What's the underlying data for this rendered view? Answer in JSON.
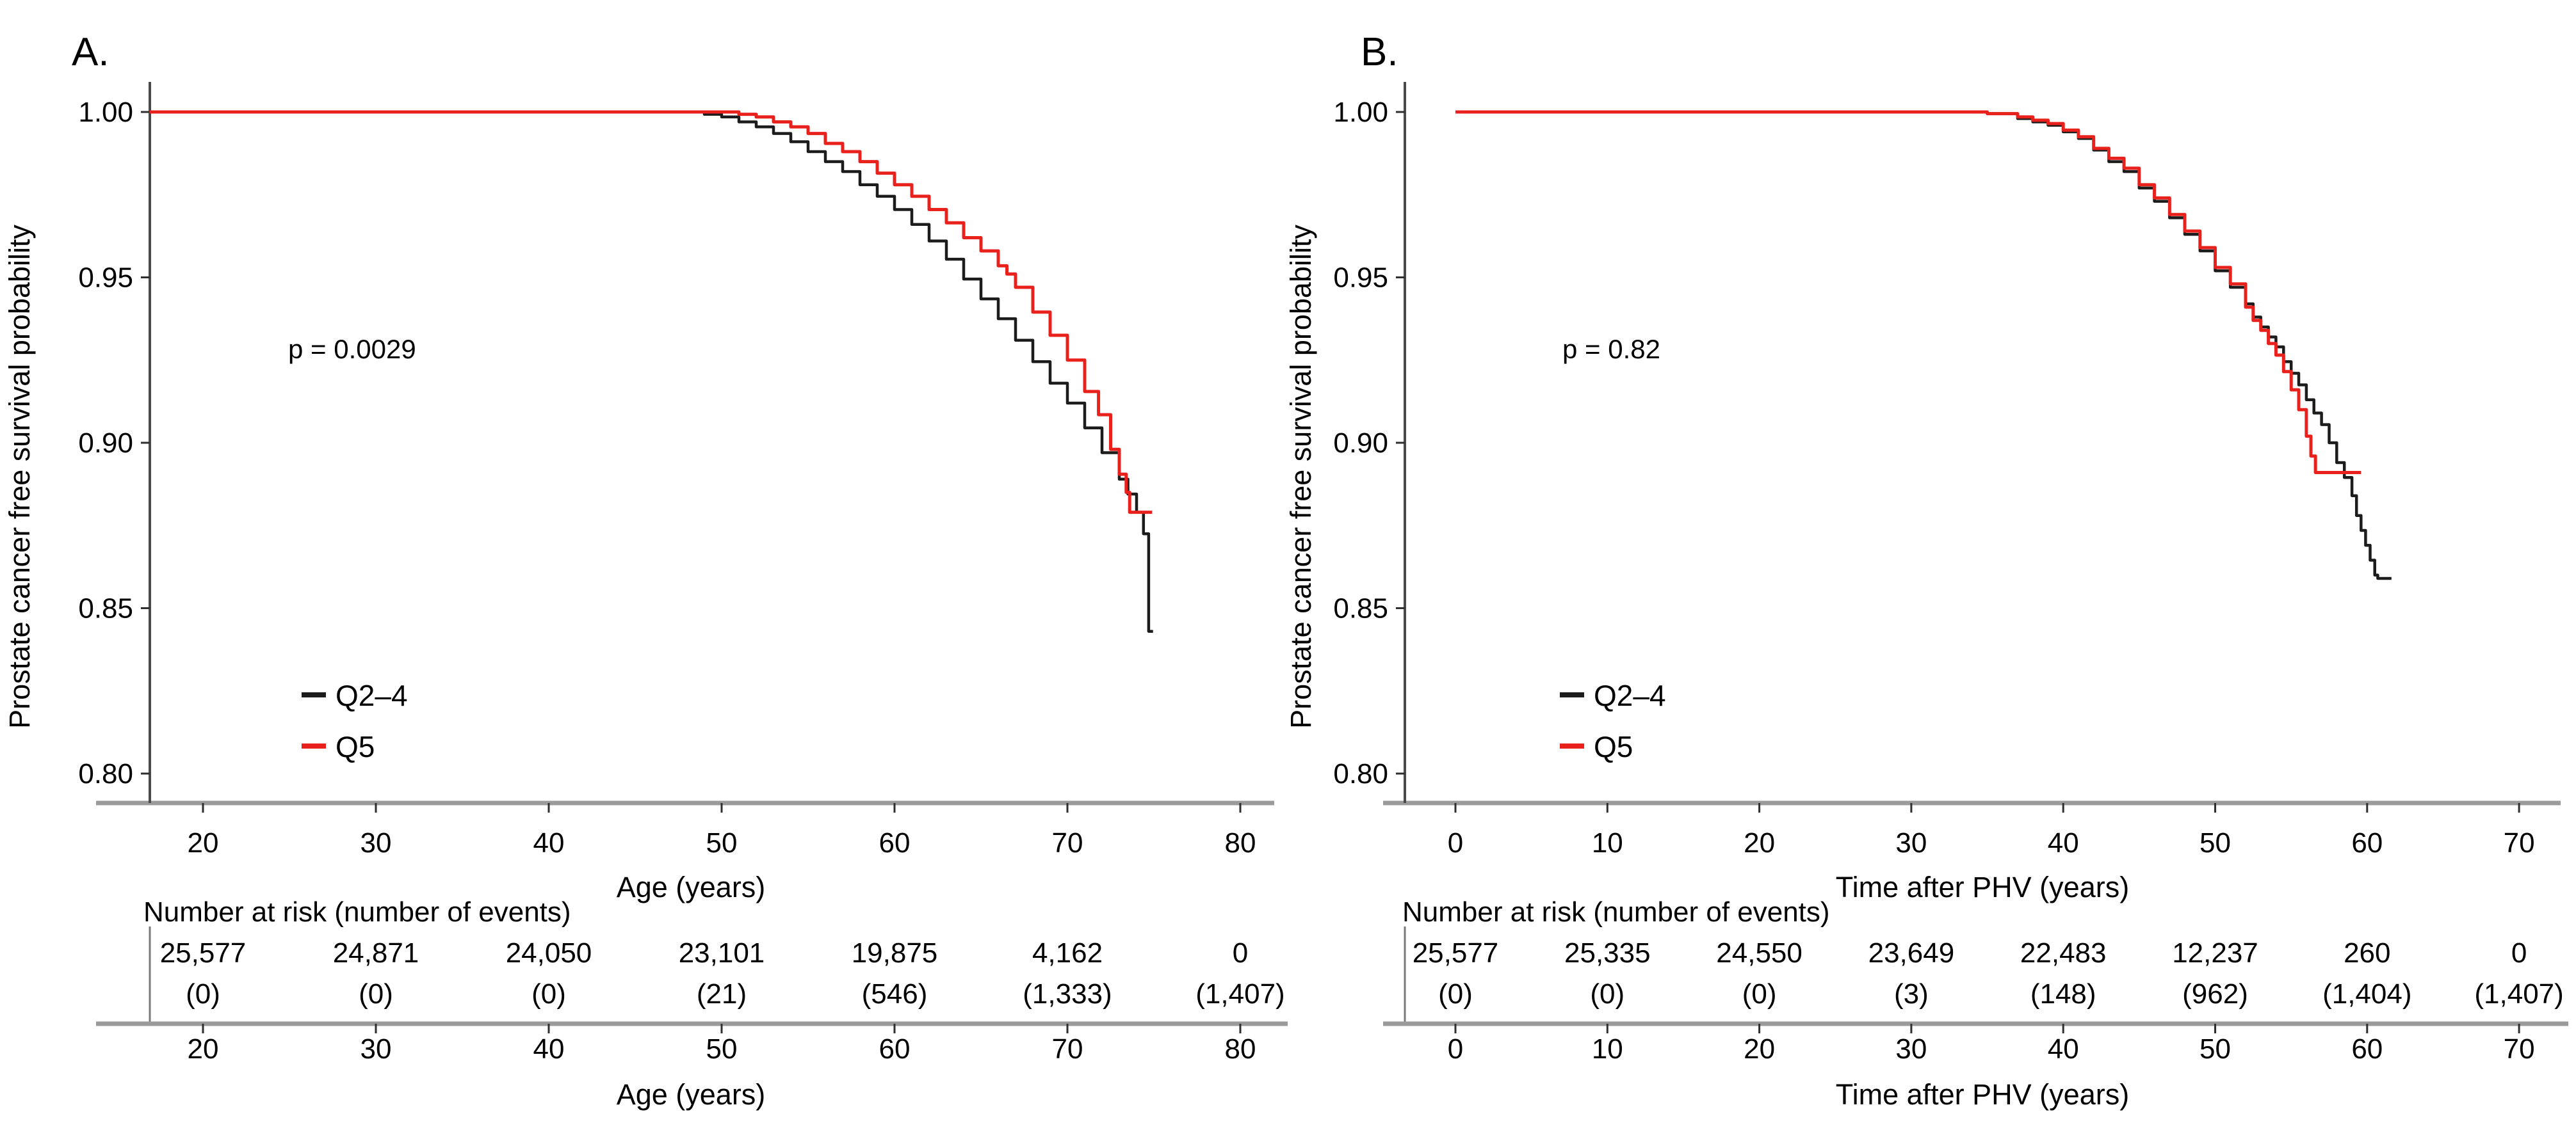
{
  "figure_caption": "",
  "shared": {
    "y_axis_label": "Prostate cancer free survival probability",
    "risk_header": "Number at risk (number of events)",
    "series_colors": {
      "q2_4": "#1c1c1c",
      "q5": "#e8211d"
    }
  },
  "chart_data": [
    {
      "type": "line",
      "subtype": "kaplan-meier-step",
      "panel": "A.",
      "p_value": "p = 0.0029",
      "xlabel": "Age (years)",
      "ylabel": "Prostate cancer free survival probability",
      "risk_header": "Number at risk (number of events)",
      "xlim": [
        17,
        82
      ],
      "ylim": [
        0.79,
        1.005
      ],
      "grid": false,
      "legend_position": "inside-bottom-left",
      "x_ticks": [
        20,
        30,
        40,
        50,
        60,
        70,
        80
      ],
      "y_ticks": [
        {
          "label": "1.00",
          "value": 1.0
        },
        {
          "label": "0.95",
          "value": 0.95
        },
        {
          "label": "0.90",
          "value": 0.9
        },
        {
          "label": "0.85",
          "value": 0.85
        },
        {
          "label": "0.80",
          "value": 0.8
        }
      ],
      "series": [
        {
          "name": "Q2–4",
          "color": "#1c1c1c",
          "points": [
            [
              16.9,
              1.0
            ],
            [
              47,
              1.0
            ],
            [
              49,
              0.9993
            ],
            [
              50,
              0.9985
            ],
            [
              51,
              0.997
            ],
            [
              52,
              0.9955
            ],
            [
              53,
              0.9935
            ],
            [
              54,
              0.991
            ],
            [
              55,
              0.988
            ],
            [
              56,
              0.985
            ],
            [
              57,
              0.982
            ],
            [
              58,
              0.978
            ],
            [
              59,
              0.9745
            ],
            [
              60,
              0.9705
            ],
            [
              61,
              0.966
            ],
            [
              62,
              0.961
            ],
            [
              63,
              0.9555
            ],
            [
              64,
              0.9495
            ],
            [
              65,
              0.9435
            ],
            [
              66,
              0.9375
            ],
            [
              67,
              0.931
            ],
            [
              68,
              0.9245
            ],
            [
              69,
              0.918
            ],
            [
              70,
              0.912
            ],
            [
              71,
              0.9045
            ],
            [
              72,
              0.897
            ],
            [
              73,
              0.889
            ],
            [
              73.5,
              0.8845
            ],
            [
              74,
              0.879
            ],
            [
              74.4,
              0.8725
            ],
            [
              74.7,
              0.843
            ],
            [
              74.95,
              0.843
            ]
          ]
        },
        {
          "name": "Q5",
          "color": "#e8211d",
          "points": [
            [
              16.9,
              1.0
            ],
            [
              49,
              1.0
            ],
            [
              51,
              0.9993
            ],
            [
              52,
              0.9985
            ],
            [
              53,
              0.997
            ],
            [
              54,
              0.9955
            ],
            [
              55,
              0.9935
            ],
            [
              56,
              0.9905
            ],
            [
              57,
              0.988
            ],
            [
              58,
              0.985
            ],
            [
              59,
              0.9815
            ],
            [
              60,
              0.978
            ],
            [
              61,
              0.9745
            ],
            [
              62,
              0.9705
            ],
            [
              63,
              0.9665
            ],
            [
              64,
              0.962
            ],
            [
              65,
              0.958
            ],
            [
              66,
              0.9535
            ],
            [
              66.5,
              0.951
            ],
            [
              67,
              0.947
            ],
            [
              68,
              0.9395
            ],
            [
              69,
              0.9325
            ],
            [
              70,
              0.925
            ],
            [
              71,
              0.9155
            ],
            [
              71.8,
              0.9085
            ],
            [
              72.5,
              0.898
            ],
            [
              73,
              0.8905
            ],
            [
              73.4,
              0.885
            ],
            [
              73.6,
              0.879
            ],
            [
              74.9,
              0.879
            ]
          ]
        }
      ],
      "risk_table": {
        "counts": [
          "25,577",
          "24,871",
          "24,050",
          "23,101",
          "19,875",
          "4,162",
          "0"
        ],
        "events": [
          "(0)",
          "(0)",
          "(0)",
          "(21)",
          "(546)",
          "(1,333)",
          "(1,407)"
        ]
      }
    },
    {
      "type": "line",
      "subtype": "kaplan-meier-step",
      "panel": "B.",
      "p_value": "p = 0.82",
      "xlabel": "Time after PHV (years)",
      "ylabel": "Prostate cancer free survival probability",
      "risk_header": "Number at risk (number of events)",
      "xlim": [
        0,
        72
      ],
      "ylim": [
        0.79,
        1.005
      ],
      "grid": false,
      "legend_position": "inside-bottom-left",
      "x_ticks": [
        0,
        10,
        20,
        30,
        40,
        50,
        60,
        70
      ],
      "y_ticks": [
        {
          "label": "1.00",
          "value": 1.0
        },
        {
          "label": "0.95",
          "value": 0.95
        },
        {
          "label": "0.90",
          "value": 0.9
        },
        {
          "label": "0.85",
          "value": 0.85
        },
        {
          "label": "0.80",
          "value": 0.8
        }
      ],
      "series": [
        {
          "name": "Q2–4",
          "color": "#1c1c1c",
          "points": [
            [
              0,
              1.0
            ],
            [
              33,
              1.0
            ],
            [
              35,
              0.9995
            ],
            [
              37,
              0.998
            ],
            [
              38,
              0.997
            ],
            [
              39,
              0.996
            ],
            [
              40,
              0.994
            ],
            [
              41,
              0.992
            ],
            [
              42,
              0.9885
            ],
            [
              43,
              0.985
            ],
            [
              44,
              0.982
            ],
            [
              45,
              0.977
            ],
            [
              46,
              0.973
            ],
            [
              47,
              0.968
            ],
            [
              48,
              0.963
            ],
            [
              49,
              0.958
            ],
            [
              50,
              0.952
            ],
            [
              51,
              0.947
            ],
            [
              52,
              0.942
            ],
            [
              52.5,
              0.938
            ],
            [
              53,
              0.935
            ],
            [
              53.5,
              0.932
            ],
            [
              54,
              0.929
            ],
            [
              54.5,
              0.9245
            ],
            [
              55,
              0.921
            ],
            [
              55.5,
              0.9175
            ],
            [
              56,
              0.913
            ],
            [
              56.5,
              0.909
            ],
            [
              57,
              0.9055
            ],
            [
              57.5,
              0.9
            ],
            [
              58,
              0.894
            ],
            [
              58.5,
              0.8895
            ],
            [
              59,
              0.884
            ],
            [
              59.3,
              0.878
            ],
            [
              59.6,
              0.8735
            ],
            [
              59.9,
              0.869
            ],
            [
              60.2,
              0.8645
            ],
            [
              60.5,
              0.86
            ],
            [
              60.7,
              0.859
            ],
            [
              61.6,
              0.859
            ]
          ]
        },
        {
          "name": "Q5",
          "color": "#e8211d",
          "points": [
            [
              0,
              1.0
            ],
            [
              33,
              1.0
            ],
            [
              35,
              0.9995
            ],
            [
              37,
              0.9985
            ],
            [
              38,
              0.9975
            ],
            [
              39,
              0.9965
            ],
            [
              40,
              0.9945
            ],
            [
              41,
              0.9925
            ],
            [
              42,
              0.989
            ],
            [
              43,
              0.986
            ],
            [
              44,
              0.983
            ],
            [
              45,
              0.978
            ],
            [
              46,
              0.974
            ],
            [
              47,
              0.969
            ],
            [
              48,
              0.964
            ],
            [
              49,
              0.959
            ],
            [
              50,
              0.953
            ],
            [
              51,
              0.948
            ],
            [
              52,
              0.941
            ],
            [
              52.5,
              0.937
            ],
            [
              53,
              0.934
            ],
            [
              53.5,
              0.93
            ],
            [
              54,
              0.9265
            ],
            [
              54.5,
              0.9215
            ],
            [
              55,
              0.916
            ],
            [
              55.5,
              0.91
            ],
            [
              56,
              0.902
            ],
            [
              56.3,
              0.896
            ],
            [
              56.6,
              0.891
            ],
            [
              59.6,
              0.891
            ]
          ]
        }
      ],
      "risk_table": {
        "counts": [
          "25,577",
          "25,335",
          "24,550",
          "23,649",
          "22,483",
          "12,237",
          "260",
          "0"
        ],
        "events": [
          "(0)",
          "(0)",
          "(0)",
          "(3)",
          "(148)",
          "(962)",
          "(1,404)",
          "(1,407)"
        ]
      }
    }
  ]
}
